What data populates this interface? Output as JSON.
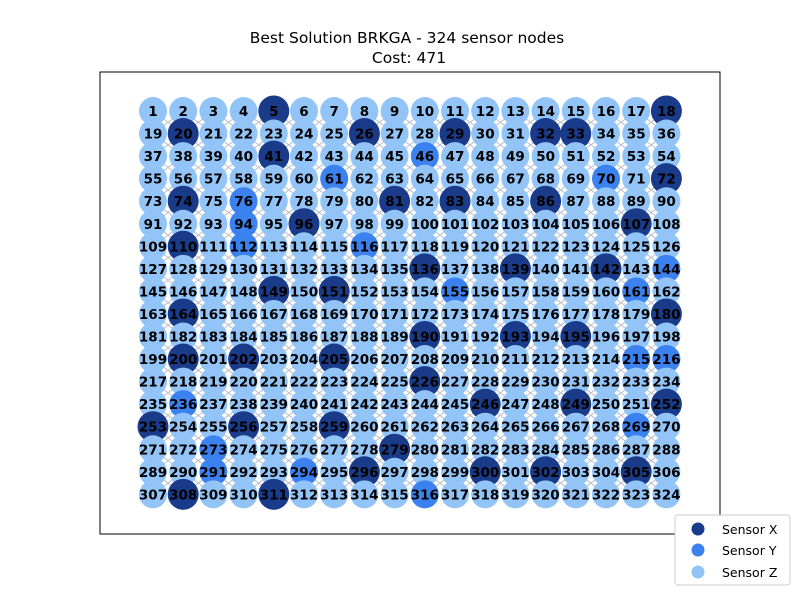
{
  "chart_data": {
    "type": "scatter",
    "title": "Best Solution BRKGA - 324 sensor nodes",
    "subtitle": "Cost: 471",
    "grid": false,
    "legend_placement": "bottom-right, outside plot",
    "rows": 18,
    "cols": 18,
    "node_count": 324,
    "colors": {
      "Sensor X": "#1a3a8a",
      "Sensor Y": "#3b82f0",
      "Sensor Z": "#93c4f7",
      "link": "#b9bfc9"
    },
    "series": [
      {
        "name": "Sensor X",
        "nodes": [
          5,
          18,
          20,
          26,
          29,
          32,
          33,
          41,
          72,
          74,
          81,
          83,
          86,
          96,
          107,
          110,
          136,
          139,
          142,
          149,
          151,
          164,
          180,
          190,
          193,
          195,
          200,
          202,
          205,
          226,
          246,
          249,
          252,
          253,
          256,
          259,
          279,
          296,
          300,
          302,
          305,
          308,
          311
        ]
      },
      {
        "name": "Sensor Y",
        "nodes": [
          46,
          61,
          70,
          76,
          94,
          112,
          116,
          144,
          155,
          161,
          215,
          216,
          236,
          269,
          273,
          291,
          294,
          316
        ]
      },
      {
        "name": "Sensor Z",
        "nodes": "all remaining nodes 1-324"
      }
    ]
  }
}
